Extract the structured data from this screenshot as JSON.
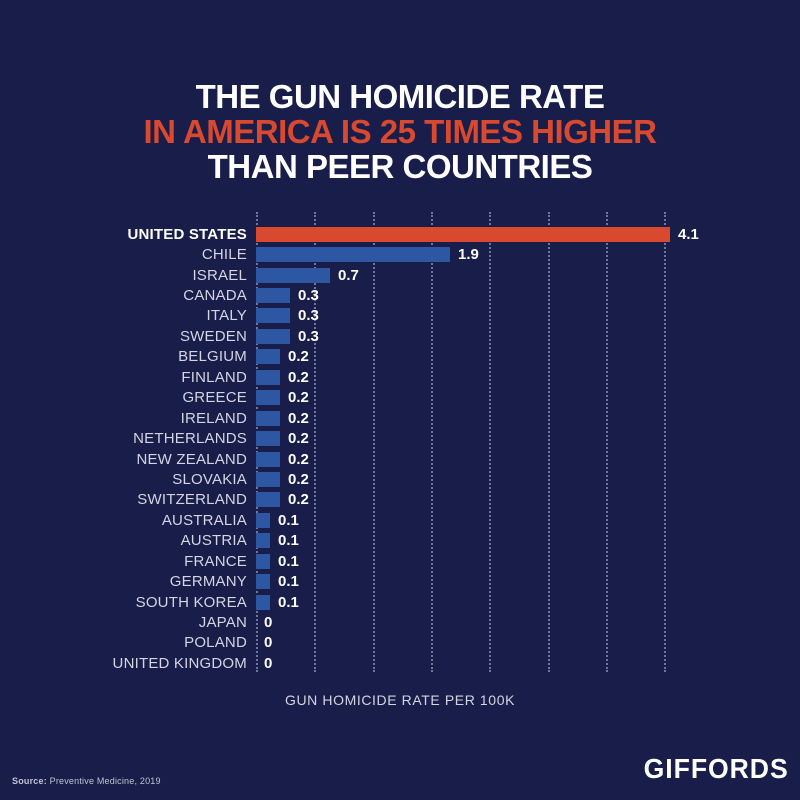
{
  "header": {
    "line1": "THE GUN HOMICIDE RATE",
    "line2": "IN AMERICA IS 25 TIMES HIGHER",
    "line3": "THAN PEER COUNTRIES"
  },
  "chart_data": {
    "type": "bar",
    "orientation": "horizontal",
    "title": "THE GUN HOMICIDE RATE IN AMERICA IS 25 TIMES HIGHER THAN PEER COUNTRIES",
    "xlabel": "GUN HOMICIDE RATE PER 100K",
    "xlim": [
      0,
      4.5
    ],
    "grid": "dotted-vertical",
    "gridline_count": 8,
    "legend": "none",
    "categories": [
      "UNITED STATES",
      "CHILE",
      "ISRAEL",
      "CANADA",
      "ITALY",
      "SWEDEN",
      "BELGIUM",
      "FINLAND",
      "GREECE",
      "IRELAND",
      "NETHERLANDS",
      "NEW ZEALAND",
      "SLOVAKIA",
      "SWITZERLAND",
      "AUSTRALIA",
      "AUSTRIA",
      "FRANCE",
      "GERMANY",
      "SOUTH KOREA",
      "JAPAN",
      "POLAND",
      "UNITED KINGDOM"
    ],
    "values": [
      4.1,
      1.9,
      0.7,
      0.3,
      0.3,
      0.3,
      0.2,
      0.2,
      0.2,
      0.2,
      0.2,
      0.2,
      0.2,
      0.2,
      0.1,
      0.1,
      0.1,
      0.1,
      0.1,
      0,
      0,
      0
    ],
    "value_labels": [
      "4.1",
      "1.9",
      "0.7",
      "0.3",
      "0.3",
      "0.3",
      "0.2",
      "0.2",
      "0.2",
      "0.2",
      "0.2",
      "0.2",
      "0.2",
      "0.2",
      "0.1",
      "0.1",
      "0.1",
      "0.1",
      "0.1",
      "0",
      "0",
      "0"
    ],
    "highlight_category": "UNITED STATES",
    "bar_color": "#2d57a3",
    "highlight_color": "#d8492f"
  },
  "footer": {
    "source_label": "Source:",
    "source_text": " Preventive Medicine, 2019",
    "brand": "GIFFORDS"
  },
  "colors": {
    "background": "#191d4a",
    "title_white": "#ffffff",
    "title_red": "#d8492f",
    "label_text": "#d3d5e2",
    "value_text": "#ffffff",
    "gridline": "rgba(186,192,218,0.55)"
  }
}
